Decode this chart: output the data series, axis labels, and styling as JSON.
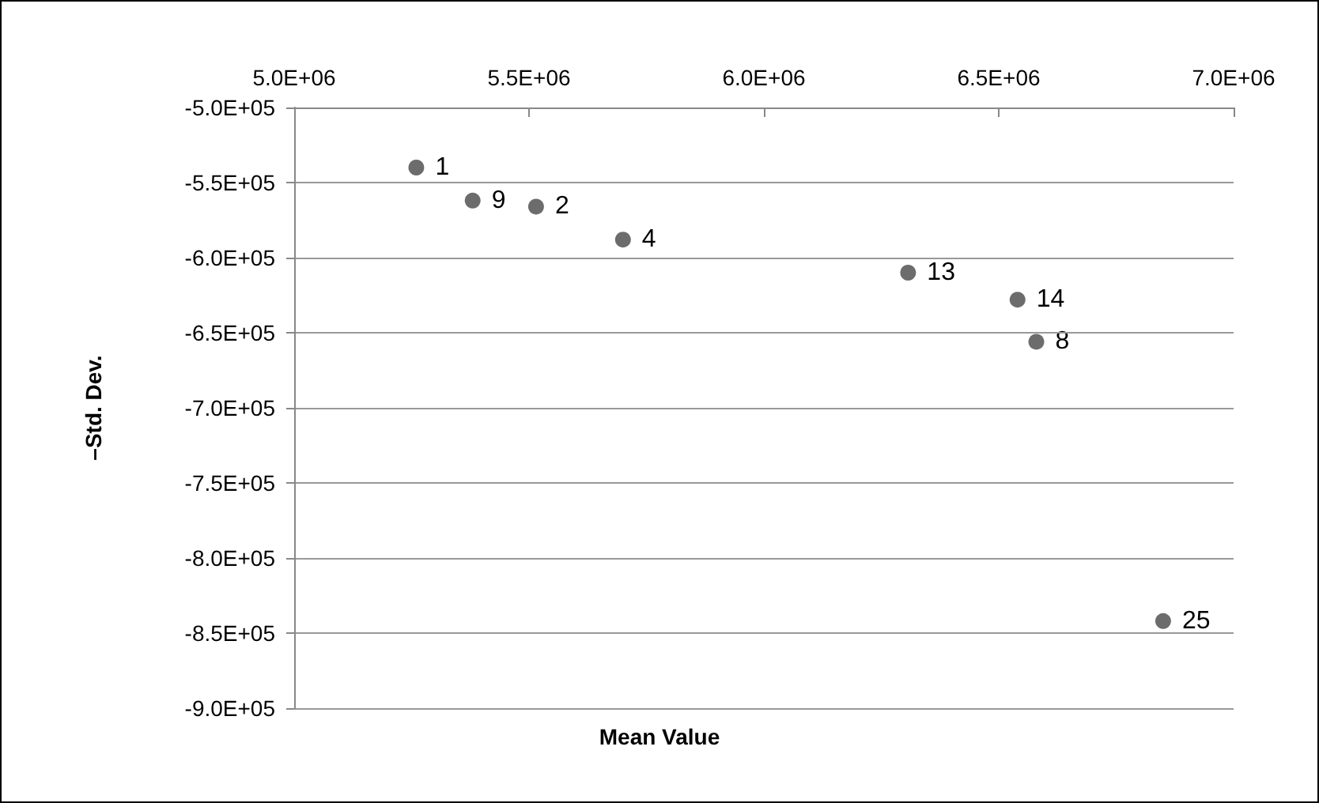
{
  "chart_data": {
    "type": "scatter",
    "xlabel": "Mean Value",
    "ylabel": "–Std. Dev.",
    "x": [
      5260000,
      5380000,
      5515000,
      5700000,
      6307000,
      6540000,
      6580000,
      6850000
    ],
    "series": [
      {
        "color": "#474747",
        "values": [
          -540000,
          -562000,
          -566000,
          -588000,
          -610000,
          -628000,
          -656000,
          -842000
        ]
      }
    ],
    "xlim": [
      5000000,
      7000000
    ],
    "xticks": [
      {
        "value": 5000000,
        "label": "5.0E+06"
      },
      {
        "value": 5500000,
        "label": "5.5E+06"
      },
      {
        "value": 6000000,
        "label": "6.0E+06"
      },
      {
        "value": 6500000,
        "label": "6.5E+06"
      },
      {
        "value": 7000000,
        "label": "7.0E+06"
      }
    ],
    "ylim": [
      -900000,
      -500000
    ],
    "yticks": [
      {
        "value": -500000,
        "label": "-5.0E+05"
      },
      {
        "value": -550000,
        "label": "-5.5E+05"
      },
      {
        "value": -600000,
        "label": "-6.0E+05"
      },
      {
        "value": -650000,
        "label": "-6.5E+05"
      },
      {
        "value": -700000,
        "label": "-7.0E+05"
      },
      {
        "value": -750000,
        "label": "-7.5E+05"
      },
      {
        "value": -800000,
        "label": "-8.0E+05"
      },
      {
        "value": -850000,
        "label": "-8.5E+05"
      },
      {
        "value": -900000,
        "label": "-9.0E+05"
      }
    ],
    "annotations": [
      {
        "text": "1",
        "x": 5260000,
        "y": -540000
      },
      {
        "text": "9",
        "x": 5380000,
        "y": -562000
      },
      {
        "text": "2",
        "x": 5515000,
        "y": -566000
      },
      {
        "text": "4",
        "x": 5700000,
        "y": -588000
      },
      {
        "text": "13",
        "x": 6307000,
        "y": -610000
      },
      {
        "text": "14",
        "x": 6540000,
        "y": -628000
      },
      {
        "text": "8",
        "x": 6580000,
        "y": -656000
      },
      {
        "text": "25",
        "x": 6850000,
        "y": -842000
      }
    ],
    "grid": "y",
    "marker": "circle"
  }
}
